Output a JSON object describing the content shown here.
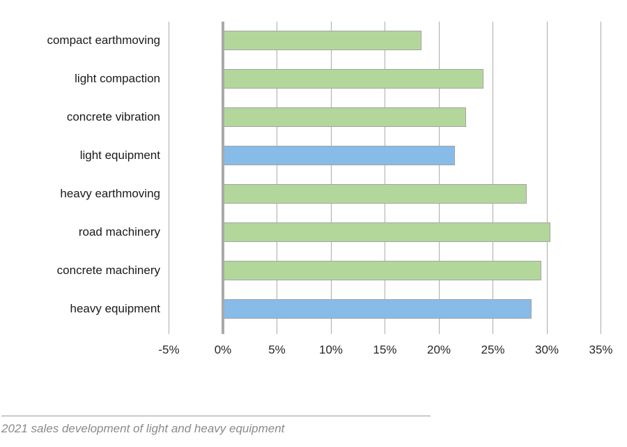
{
  "chart_data": {
    "type": "bar",
    "orientation": "horizontal",
    "title": "",
    "categories": [
      "compact earthmoving",
      "light compaction",
      "concrete vibration",
      "light equipment",
      "heavy earthmoving",
      "road machinery",
      "concrete machinery",
      "heavy equipment"
    ],
    "values": [
      18.4,
      24.1,
      22.5,
      21.5,
      28.1,
      30.3,
      29.5,
      28.6
    ],
    "bar_colors": [
      "green",
      "green",
      "green",
      "blue",
      "green",
      "green",
      "green",
      "blue"
    ],
    "x_tick_values": [
      -5,
      0,
      5,
      10,
      15,
      20,
      25,
      30,
      35
    ],
    "x_tick_labels": [
      "-5%",
      "0%",
      "5%",
      "10%",
      "15%",
      "20%",
      "25%",
      "30%",
      "35%"
    ],
    "xlim": [
      -5,
      35
    ],
    "unit": "%",
    "grid": true,
    "legend": "none"
  },
  "caption": {
    "text": "2021 sales development of light and heavy equipment"
  },
  "colors": {
    "green": "#b3d79b",
    "blue": "#87bbe8",
    "bar_border": "#a3a3a3",
    "gridline": "#ababab",
    "zero_line": "#a9a9a9",
    "label_text": "#1a1a1a",
    "caption_text": "#8a8a8a"
  }
}
